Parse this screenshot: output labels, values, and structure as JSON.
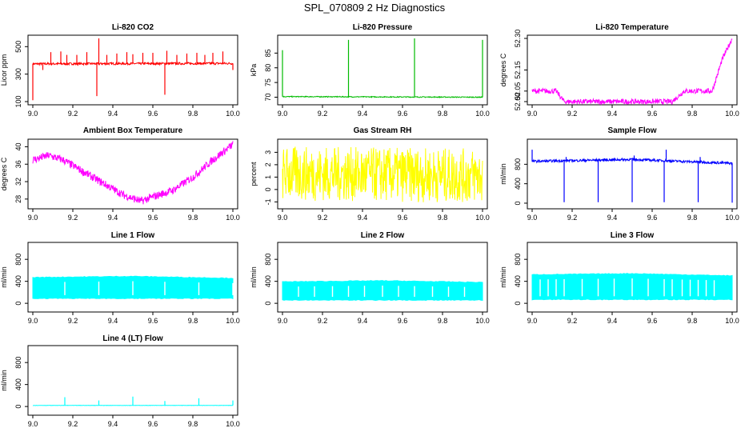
{
  "title": "SPL_070809  2 Hz Diagnostics",
  "chart_data": [
    {
      "type": "line",
      "title": "Li-820 CO2",
      "ylabel": "Licor ppm",
      "color": "#ff0000",
      "xlim": [
        9.0,
        10.0
      ],
      "ylim": [
        100,
        560
      ],
      "yticks": [
        100,
        300,
        500
      ],
      "xticks": [
        9.0,
        9.2,
        9.4,
        9.6,
        9.8,
        10.0
      ],
      "baseline": [
        [
          9.0,
          375
        ],
        [
          10.0,
          378
        ]
      ],
      "noise": 8,
      "spikes": [
        [
          9.0,
          110
        ],
        [
          9.02,
          370
        ],
        [
          9.05,
          330
        ],
        [
          9.09,
          460
        ],
        [
          9.14,
          465
        ],
        [
          9.17,
          440
        ],
        [
          9.22,
          440
        ],
        [
          9.27,
          460
        ],
        [
          9.32,
          140
        ],
        [
          9.33,
          560
        ],
        [
          9.37,
          440
        ],
        [
          9.42,
          450
        ],
        [
          9.47,
          460
        ],
        [
          9.5,
          445
        ],
        [
          9.55,
          455
        ],
        [
          9.6,
          455
        ],
        [
          9.66,
          150
        ],
        [
          9.67,
          470
        ],
        [
          9.72,
          440
        ],
        [
          9.77,
          450
        ],
        [
          9.82,
          455
        ],
        [
          9.86,
          440
        ],
        [
          9.9,
          455
        ],
        [
          9.95,
          465
        ],
        [
          10.0,
          330
        ]
      ]
    },
    {
      "type": "line",
      "title": "Li-820 Pressure",
      "ylabel": "kPa",
      "color": "#00bb00",
      "xlim": [
        9.0,
        10.0
      ],
      "ylim": [
        68.5,
        90
      ],
      "yticks": [
        70,
        75,
        80,
        85
      ],
      "xticks": [
        9.0,
        9.2,
        9.4,
        9.6,
        9.8,
        10.0
      ],
      "baseline": [
        [
          9.0,
          70.2
        ],
        [
          10.0,
          70.0
        ]
      ],
      "noise": 0.15,
      "spikes": [
        [
          9.0,
          86
        ],
        [
          9.33,
          89.5
        ],
        [
          9.66,
          90
        ],
        [
          10.0,
          89.5
        ]
      ]
    },
    {
      "type": "line",
      "title": "Li-820 Temperature",
      "ylabel": "degrees C",
      "color": "#ff00ff",
      "xlim": [
        9.0,
        10.0
      ],
      "ylim": [
        52.0,
        52.3
      ],
      "yticks": [
        52.0,
        52.05,
        52.15,
        52.3
      ],
      "ytick_labels": [
        "52.00",
        "52.05",
        "52.15",
        "52.30"
      ],
      "xticks": [
        9.0,
        9.2,
        9.4,
        9.6,
        9.8,
        10.0
      ],
      "baseline": [
        [
          9.0,
          52.05
        ],
        [
          9.12,
          52.05
        ],
        [
          9.16,
          52.0
        ],
        [
          9.7,
          52.0
        ],
        [
          9.76,
          52.05
        ],
        [
          9.9,
          52.05
        ],
        [
          9.95,
          52.2
        ],
        [
          10.0,
          52.3
        ]
      ],
      "noise": 0.012,
      "spikes": []
    },
    {
      "type": "line",
      "title": "Ambient Box Temperature",
      "ylabel": "degrees C",
      "color": "#ff00ff",
      "xlim": [
        9.0,
        10.0
      ],
      "ylim": [
        26.5,
        41
      ],
      "yticks": [
        28,
        32,
        36,
        40
      ],
      "xticks": [
        9.0,
        9.2,
        9.4,
        9.6,
        9.8,
        10.0
      ],
      "baseline": [
        [
          9.0,
          37
        ],
        [
          9.08,
          38
        ],
        [
          9.15,
          37
        ],
        [
          9.3,
          33
        ],
        [
          9.45,
          29
        ],
        [
          9.54,
          27.5
        ],
        [
          9.6,
          28.5
        ],
        [
          9.7,
          30
        ],
        [
          9.8,
          33
        ],
        [
          9.9,
          37
        ],
        [
          10.0,
          40.5
        ]
      ],
      "noise": 0.9,
      "spikes": []
    },
    {
      "type": "line",
      "title": "Gas Stream RH",
      "ylabel": "percent",
      "color": "#ffff00",
      "xlim": [
        9.0,
        10.0
      ],
      "ylim": [
        -1.3,
        3.8
      ],
      "yticks": [
        -1,
        0,
        1,
        2,
        3
      ],
      "xticks": [
        9.0,
        9.2,
        9.4,
        9.6,
        9.8,
        10.0
      ],
      "baseline": [
        [
          9.0,
          1.3
        ],
        [
          10.0,
          1.1
        ]
      ],
      "noise": 2.2,
      "spikes": []
    },
    {
      "type": "line",
      "title": "Sample Flow",
      "ylabel": "ml/min",
      "color": "#0000ff",
      "xlim": [
        9.0,
        10.0
      ],
      "ylim": [
        -50,
        1250
      ],
      "yticks": [
        0,
        400,
        800
      ],
      "xticks": [
        9.0,
        9.2,
        9.4,
        9.6,
        9.8,
        10.0
      ],
      "baseline": [
        [
          9.0,
          860
        ],
        [
          9.5,
          900
        ],
        [
          10.0,
          820
        ]
      ],
      "noise": 25,
      "spikes": [
        [
          9.0,
          1100
        ],
        [
          9.16,
          20
        ],
        [
          9.17,
          950
        ],
        [
          9.33,
          20
        ],
        [
          9.5,
          20
        ],
        [
          9.51,
          980
        ],
        [
          9.66,
          20
        ],
        [
          9.67,
          1100
        ],
        [
          9.83,
          20
        ],
        [
          9.84,
          950
        ],
        [
          10.0,
          10
        ]
      ]
    },
    {
      "type": "band",
      "title": "Line 1 Flow",
      "ylabel": "ml/min",
      "color": "#00ffff",
      "xlim": [
        9.0,
        10.0
      ],
      "ylim": [
        -100,
        1050
      ],
      "yticks": [
        0,
        400,
        800
      ],
      "xticks": [
        9.0,
        9.2,
        9.4,
        9.6,
        9.8,
        10.0
      ],
      "top": [
        [
          9.0,
          470
        ],
        [
          9.5,
          490
        ],
        [
          10.0,
          455
        ]
      ],
      "bottom": [
        [
          9.0,
          90
        ],
        [
          10.0,
          90
        ]
      ],
      "gaps": [
        9.16,
        9.33,
        9.5,
        9.66,
        9.83,
        10.0
      ]
    },
    {
      "type": "band",
      "title": "Line 2 Flow",
      "ylabel": "ml/min",
      "color": "#00ffff",
      "xlim": [
        9.0,
        10.0
      ],
      "ylim": [
        -100,
        1050
      ],
      "yticks": [
        0,
        400,
        800
      ],
      "xticks": [
        9.0,
        9.2,
        9.4,
        9.6,
        9.8,
        10.0
      ],
      "top": [
        [
          9.0,
          390
        ],
        [
          9.5,
          410
        ],
        [
          10.0,
          380
        ]
      ],
      "bottom": [
        [
          9.0,
          60
        ],
        [
          10.0,
          60
        ]
      ],
      "gaps": [
        9.08,
        9.16,
        9.25,
        9.33,
        9.41,
        9.5,
        9.58,
        9.66,
        9.75,
        9.83,
        9.91
      ]
    },
    {
      "type": "band",
      "title": "Line 3 Flow",
      "ylabel": "ml/min",
      "color": "#00ffff",
      "xlim": [
        9.0,
        10.0
      ],
      "ylim": [
        -100,
        1050
      ],
      "yticks": [
        0,
        400,
        800
      ],
      "xticks": [
        9.0,
        9.2,
        9.4,
        9.6,
        9.8,
        10.0
      ],
      "top": [
        [
          9.0,
          520
        ],
        [
          9.5,
          540
        ],
        [
          10.0,
          500
        ]
      ],
      "bottom": [
        [
          9.0,
          70
        ],
        [
          10.0,
          70
        ]
      ],
      "gaps": [
        9.04,
        9.08,
        9.12,
        9.16,
        9.25,
        9.33,
        9.41,
        9.5,
        9.58,
        9.66,
        9.7,
        9.75,
        9.79,
        9.83,
        9.87,
        9.91
      ]
    },
    {
      "type": "line",
      "title": "Line 4 (LT) Flow",
      "ylabel": "ml/min",
      "color": "#00ffff",
      "xlim": [
        9.0,
        10.0
      ],
      "ylim": [
        -100,
        1050
      ],
      "yticks": [
        0,
        400,
        800
      ],
      "xticks": [
        9.0,
        9.2,
        9.4,
        9.6,
        9.8,
        10.0
      ],
      "baseline": [
        [
          9.0,
          20
        ],
        [
          10.0,
          20
        ]
      ],
      "noise": 3,
      "spikes": [
        [
          9.16,
          170
        ],
        [
          9.33,
          110
        ],
        [
          9.5,
          180
        ],
        [
          9.66,
          100
        ],
        [
          9.83,
          150
        ],
        [
          10.0,
          110
        ]
      ]
    }
  ]
}
